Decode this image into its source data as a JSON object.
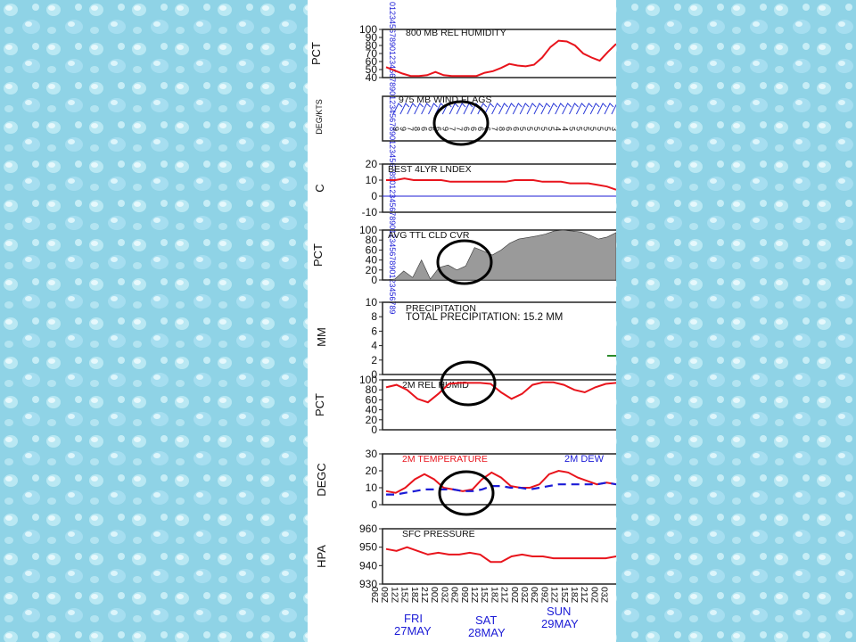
{
  "background": {
    "pattern": "water-droplets",
    "color": "#8fd3e6"
  },
  "header": {
    "hour_labels": "0123456789012345678901234567890123456789012345678901234567890123456789"
  },
  "days": [
    {
      "day": "FRI",
      "date": "27MAY"
    },
    {
      "day": "SAT",
      "date": "28MAY"
    },
    {
      "day": "SUN",
      "date": "29MAY"
    }
  ],
  "time_ticks": [
    "06Z",
    "09Z",
    "12Z",
    "15Z",
    "18Z",
    "21Z",
    "00Z",
    "03Z",
    "06Z",
    "09Z",
    "12Z",
    "15Z",
    "18Z",
    "21Z",
    "00Z",
    "03Z",
    "06Z",
    "09Z",
    "12Z",
    "15Z",
    "18Z",
    "21Z",
    "00Z",
    "03Z"
  ],
  "highlight_color": "#000000",
  "chart_data": [
    {
      "type": "line",
      "title": "800 MB  REL HUMIDITY",
      "ylabel": "PCT",
      "ylim": [
        40,
        100
      ],
      "yticks": [
        100,
        90,
        80,
        70,
        60,
        50,
        40
      ],
      "series": [
        {
          "color": "#e8141c",
          "values": [
            53,
            49,
            45,
            42,
            42,
            43,
            47,
            43,
            42,
            42,
            42,
            42,
            46,
            48,
            52,
            57,
            55,
            54,
            56,
            65,
            78,
            86,
            85,
            80,
            70,
            65,
            61,
            72,
            82
          ]
        }
      ]
    },
    {
      "type": "line",
      "title": "975 MB  WIND FLAGS",
      "ylabel": "DEG/KTS",
      "flags": 32,
      "speed_digits": "99786669776666786655555445555553"
    },
    {
      "type": "line",
      "title": "BEST 4LYR LNDEX",
      "ylabel": "C",
      "ylim": [
        -10,
        20
      ],
      "yticks": [
        20,
        10,
        0,
        -10
      ],
      "series": [
        {
          "color": "#e8141c",
          "values": [
            10,
            10,
            11,
            10,
            10,
            10,
            10,
            9,
            9,
            9,
            9,
            9,
            9,
            9,
            10,
            10,
            10,
            9,
            9,
            9,
            8,
            8,
            8,
            7,
            6,
            4
          ]
        }
      ]
    },
    {
      "type": "area",
      "title": "AVG TTL CLD CVR",
      "ylabel": "PCT",
      "ylim": [
        0,
        100
      ],
      "yticks": [
        100,
        80,
        60,
        40,
        20,
        0
      ],
      "series": [
        {
          "color": "#9a9a9a",
          "values": [
            0,
            2,
            18,
            5,
            40,
            2,
            25,
            30,
            20,
            28,
            65,
            58,
            50,
            60,
            74,
            82,
            85,
            88,
            92,
            98,
            100,
            98,
            96,
            90,
            82,
            86,
            95
          ]
        }
      ]
    },
    {
      "type": "bar",
      "title": "PRECIPITATION",
      "annotation": "TOTAL PRECIPITATION:  15.2 MM",
      "ylabel": "MM",
      "ylim": [
        0,
        10
      ],
      "yticks": [
        10,
        8,
        6,
        4,
        2,
        0
      ]
    },
    {
      "type": "line",
      "title": "2M REL HUMID",
      "ylabel": "PCT",
      "ylim": [
        0,
        100
      ],
      "yticks": [
        100,
        80,
        60,
        40,
        20,
        0
      ],
      "series": [
        {
          "color": "#e8141c",
          "values": [
            85,
            90,
            80,
            62,
            55,
            72,
            92,
            94,
            94,
            94,
            92,
            75,
            62,
            72,
            90,
            95,
            95,
            90,
            80,
            75,
            85,
            92,
            94
          ]
        }
      ]
    },
    {
      "type": "line",
      "title": "2M TEMPERATURE",
      "legend_right": "2M  DEW",
      "legend_right_color": "#1b1bd6",
      "ylabel": "DEGC",
      "ylim": [
        0,
        30
      ],
      "yticks": [
        30,
        20,
        10,
        0
      ],
      "series": [
        {
          "color": "#e8141c",
          "values": [
            8,
            7,
            10,
            15,
            18,
            15,
            10,
            9,
            8,
            9,
            15,
            19,
            16,
            11,
            10,
            10,
            12,
            18,
            20,
            19,
            16,
            14,
            12,
            13,
            12
          ]
        },
        {
          "color": "#1b1bd6",
          "dashed": true,
          "values": [
            6,
            6,
            7,
            8,
            9,
            9,
            9,
            9,
            8,
            8,
            9,
            11,
            11,
            10,
            10,
            9,
            10,
            11,
            12,
            12,
            12,
            12,
            12,
            13,
            12
          ]
        }
      ]
    },
    {
      "type": "line",
      "title": "SFC PRESSURE",
      "ylabel": "HPA",
      "ylim": [
        930,
        960
      ],
      "yticks": [
        960,
        950,
        940,
        930
      ],
      "series": [
        {
          "color": "#e8141c",
          "values": [
            949,
            948,
            950,
            948,
            946,
            947,
            946,
            946,
            947,
            946,
            942,
            942,
            945,
            946,
            945,
            945,
            944,
            944,
            944,
            944,
            944,
            944,
            945
          ]
        }
      ]
    }
  ]
}
